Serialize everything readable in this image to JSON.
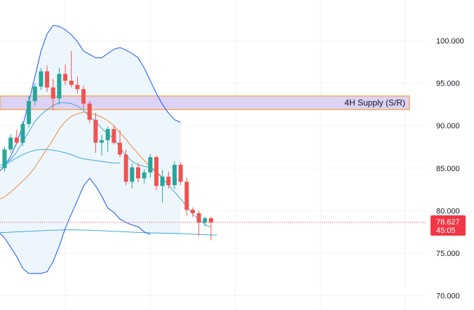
{
  "chart_data": {
    "type": "candlestick",
    "title": "",
    "xlabel": "",
    "ylabel": "",
    "y_axis": {
      "ticks": [
        70,
        75,
        80,
        85,
        90,
        95,
        100
      ],
      "tick_labels": [
        "70.000",
        "75.000",
        "80.000",
        "85.000",
        "90.000",
        "95.000",
        "100.000"
      ],
      "range": [
        68.3,
        104.8
      ]
    },
    "x_range": [
      -1,
      40
    ],
    "grid": true,
    "current_price": {
      "value": 78.627,
      "label": "78.627",
      "countdown": "45:05",
      "color": "#f23645"
    },
    "zone": {
      "label": "4H Supply (S/R)",
      "top": 93.5,
      "bottom": 91.9,
      "fill": "#dcd2f5",
      "border": "#f7a135"
    },
    "colors": {
      "up": "#26a69a",
      "down": "#ef5350",
      "bb": "#2962ff",
      "bb_fill": "#eaf4fc",
      "ema_fast": "#3fa9d8",
      "ema_slow": "#f08a3c",
      "ma_long": "#3fa9d8"
    },
    "candles": [
      {
        "i": 0,
        "o": 85.0,
        "h": 87.5,
        "l": 84.6,
        "c": 87.2
      },
      {
        "i": 1,
        "o": 87.2,
        "h": 89.0,
        "l": 86.8,
        "c": 88.6
      },
      {
        "i": 2,
        "o": 88.6,
        "h": 89.5,
        "l": 87.8,
        "c": 88.0
      },
      {
        "i": 3,
        "o": 88.0,
        "h": 90.5,
        "l": 87.6,
        "c": 90.2
      },
      {
        "i": 4,
        "o": 90.2,
        "h": 93.5,
        "l": 89.8,
        "c": 92.9
      },
      {
        "i": 5,
        "o": 92.9,
        "h": 95.0,
        "l": 92.4,
        "c": 94.6
      },
      {
        "i": 6,
        "o": 94.6,
        "h": 96.8,
        "l": 94.2,
        "c": 96.4
      },
      {
        "i": 7,
        "o": 96.4,
        "h": 97.1,
        "l": 94.0,
        "c": 94.5
      },
      {
        "i": 8,
        "o": 94.5,
        "h": 95.5,
        "l": 91.8,
        "c": 93.2
      },
      {
        "i": 9,
        "o": 93.2,
        "h": 96.8,
        "l": 92.5,
        "c": 96.1
      },
      {
        "i": 10,
        "o": 96.1,
        "h": 97.2,
        "l": 94.8,
        "c": 95.3
      },
      {
        "i": 11,
        "o": 95.3,
        "h": 98.8,
        "l": 94.5,
        "c": 94.8
      },
      {
        "i": 12,
        "o": 94.8,
        "h": 95.8,
        "l": 93.8,
        "c": 94.3
      },
      {
        "i": 13,
        "o": 94.3,
        "h": 94.7,
        "l": 92.0,
        "c": 92.6
      },
      {
        "i": 14,
        "o": 92.6,
        "h": 92.9,
        "l": 90.3,
        "c": 90.7
      },
      {
        "i": 15,
        "o": 90.7,
        "h": 91.5,
        "l": 86.8,
        "c": 88.0
      },
      {
        "i": 16,
        "o": 88.0,
        "h": 88.9,
        "l": 86.5,
        "c": 88.3
      },
      {
        "i": 17,
        "o": 88.3,
        "h": 89.9,
        "l": 86.9,
        "c": 89.6
      },
      {
        "i": 18,
        "o": 89.6,
        "h": 90.0,
        "l": 87.8,
        "c": 88.0
      },
      {
        "i": 19,
        "o": 88.0,
        "h": 89.5,
        "l": 86.3,
        "c": 86.6
      },
      {
        "i": 20,
        "o": 86.6,
        "h": 87.2,
        "l": 83.0,
        "c": 83.4
      },
      {
        "i": 21,
        "o": 83.4,
        "h": 85.6,
        "l": 82.6,
        "c": 85.1
      },
      {
        "i": 22,
        "o": 85.1,
        "h": 85.6,
        "l": 83.3,
        "c": 83.8
      },
      {
        "i": 23,
        "o": 83.8,
        "h": 84.9,
        "l": 83.2,
        "c": 84.5
      },
      {
        "i": 24,
        "o": 84.5,
        "h": 86.7,
        "l": 83.9,
        "c": 86.3
      },
      {
        "i": 25,
        "o": 86.3,
        "h": 86.5,
        "l": 82.4,
        "c": 82.9
      },
      {
        "i": 26,
        "o": 82.9,
        "h": 84.8,
        "l": 80.9,
        "c": 84.0
      },
      {
        "i": 27,
        "o": 84.0,
        "h": 84.6,
        "l": 82.6,
        "c": 83.0
      },
      {
        "i": 28,
        "o": 83.0,
        "h": 85.8,
        "l": 82.5,
        "c": 85.4
      },
      {
        "i": 29,
        "o": 85.4,
        "h": 85.7,
        "l": 83.0,
        "c": 83.4
      },
      {
        "i": 30,
        "o": 83.4,
        "h": 83.9,
        "l": 79.4,
        "c": 80.1
      },
      {
        "i": 31,
        "o": 80.1,
        "h": 80.4,
        "l": 79.2,
        "c": 79.7
      },
      {
        "i": 32,
        "o": 79.7,
        "h": 80.0,
        "l": 77.0,
        "c": 78.6
      },
      {
        "i": 33,
        "o": 78.6,
        "h": 79.3,
        "l": 78.1,
        "c": 79.1
      },
      {
        "i": 34,
        "o": 79.1,
        "h": 79.3,
        "l": 76.5,
        "c": 78.6
      }
    ],
    "bb_upper": [
      [
        -1,
        84.5
      ],
      [
        0,
        85.2
      ],
      [
        1,
        86.4
      ],
      [
        2,
        88.0
      ],
      [
        3,
        90.0
      ],
      [
        4,
        92.8
      ],
      [
        5,
        95.8
      ],
      [
        6,
        98.8
      ],
      [
        7,
        100.8
      ],
      [
        8,
        101.8
      ],
      [
        9,
        101.7
      ],
      [
        10,
        101.3
      ],
      [
        11,
        100.7
      ],
      [
        12,
        99.9
      ],
      [
        13,
        98.8
      ],
      [
        14,
        98.4
      ],
      [
        15,
        98.0
      ],
      [
        16,
        98.0
      ],
      [
        17,
        98.5
      ],
      [
        18,
        99.0
      ],
      [
        19,
        99.2
      ],
      [
        20,
        98.9
      ],
      [
        21,
        98.5
      ],
      [
        22,
        98.0
      ],
      [
        23,
        96.8
      ],
      [
        24,
        95.3
      ],
      [
        25,
        93.8
      ],
      [
        26,
        92.5
      ],
      [
        27,
        91.5
      ],
      [
        28,
        90.7
      ],
      [
        29,
        90.4
      ]
    ],
    "bb_lower": [
      [
        -1,
        77.5
      ],
      [
        0,
        76.8
      ],
      [
        1,
        75.7
      ],
      [
        2,
        74.6
      ],
      [
        3,
        73.2
      ],
      [
        4,
        72.6
      ],
      [
        5,
        72.6
      ],
      [
        6,
        72.6
      ],
      [
        7,
        72.8
      ],
      [
        8,
        74.0
      ],
      [
        9,
        75.8
      ],
      [
        10,
        77.9
      ],
      [
        11,
        79.6
      ],
      [
        12,
        81.2
      ],
      [
        13,
        82.9
      ],
      [
        14,
        83.8
      ],
      [
        15,
        82.9
      ],
      [
        16,
        81.7
      ],
      [
        17,
        80.3
      ],
      [
        18,
        79.8
      ],
      [
        19,
        79.0
      ],
      [
        20,
        78.6
      ],
      [
        21,
        78.3
      ],
      [
        22,
        78.1
      ],
      [
        23,
        77.5
      ],
      [
        24,
        77.2
      ]
    ],
    "ema_fast": [
      [
        -1,
        85.3
      ],
      [
        0,
        85.5
      ],
      [
        1,
        86.0
      ],
      [
        2,
        86.9
      ],
      [
        3,
        88.1
      ],
      [
        4,
        89.3
      ],
      [
        5,
        90.5
      ],
      [
        6,
        91.3
      ],
      [
        7,
        91.9
      ],
      [
        8,
        92.4
      ],
      [
        9,
        92.7
      ],
      [
        10,
        92.7
      ],
      [
        11,
        92.6
      ],
      [
        12,
        92.3
      ],
      [
        13,
        91.8
      ],
      [
        14,
        91.1
      ],
      [
        15,
        90.5
      ],
      [
        16,
        89.7
      ],
      [
        17,
        89.0
      ],
      [
        18,
        88.5
      ],
      [
        19,
        87.4
      ],
      [
        20,
        86.5
      ],
      [
        21,
        85.8
      ],
      [
        22,
        85.4
      ],
      [
        23,
        85.2
      ],
      [
        24,
        85.1
      ],
      [
        25,
        84.5
      ],
      [
        26,
        83.8
      ],
      [
        27,
        83.0
      ],
      [
        28,
        82.2
      ],
      [
        29,
        81.4
      ],
      [
        30,
        80.5
      ],
      [
        31,
        79.6
      ],
      [
        32,
        78.9
      ],
      [
        33,
        78.4
      ],
      [
        34,
        78.0
      ]
    ],
    "ema_slow": [
      [
        -1,
        81.3
      ],
      [
        0,
        81.6
      ],
      [
        1,
        82.2
      ],
      [
        2,
        82.8
      ],
      [
        3,
        83.5
      ],
      [
        4,
        84.2
      ],
      [
        5,
        85.1
      ],
      [
        6,
        86.2
      ],
      [
        7,
        87.3
      ],
      [
        8,
        88.4
      ],
      [
        9,
        89.6
      ],
      [
        10,
        90.5
      ],
      [
        11,
        91.1
      ],
      [
        12,
        91.4
      ],
      [
        13,
        91.6
      ],
      [
        14,
        91.5
      ],
      [
        15,
        91.3
      ],
      [
        16,
        91.0
      ],
      [
        17,
        90.6
      ],
      [
        18,
        90.0
      ],
      [
        19,
        89.2
      ],
      [
        20,
        88.4
      ],
      [
        21,
        87.5
      ],
      [
        22,
        86.7
      ],
      [
        23,
        85.9
      ],
      [
        24,
        85.2
      ],
      [
        25,
        84.6
      ],
      [
        26,
        83.9
      ]
    ],
    "ma_long": [
      [
        -1,
        85.0
      ],
      [
        0,
        85.3
      ],
      [
        1,
        85.8
      ],
      [
        2,
        86.2
      ],
      [
        3,
        86.6
      ],
      [
        4,
        86.9
      ],
      [
        5,
        87.1
      ],
      [
        6,
        87.2
      ],
      [
        7,
        87.2
      ],
      [
        8,
        87.1
      ],
      [
        9,
        87.0
      ],
      [
        10,
        86.8
      ],
      [
        11,
        86.6
      ],
      [
        12,
        86.3
      ],
      [
        13,
        86.1
      ],
      [
        14,
        86.0
      ],
      [
        15,
        85.9
      ],
      [
        16,
        85.8
      ],
      [
        17,
        85.7
      ],
      [
        18,
        85.6
      ],
      [
        19,
        85.6
      ]
    ],
    "ma_longest": [
      [
        -1,
        77.4
      ],
      [
        2,
        77.5
      ],
      [
        5,
        77.6
      ],
      [
        8,
        77.7
      ],
      [
        11,
        77.75
      ],
      [
        14,
        77.7
      ],
      [
        17,
        77.6
      ],
      [
        20,
        77.5
      ],
      [
        23,
        77.4
      ],
      [
        26,
        77.35
      ],
      [
        29,
        77.3
      ],
      [
        32,
        77.2
      ],
      [
        35,
        77.1
      ]
    ]
  }
}
